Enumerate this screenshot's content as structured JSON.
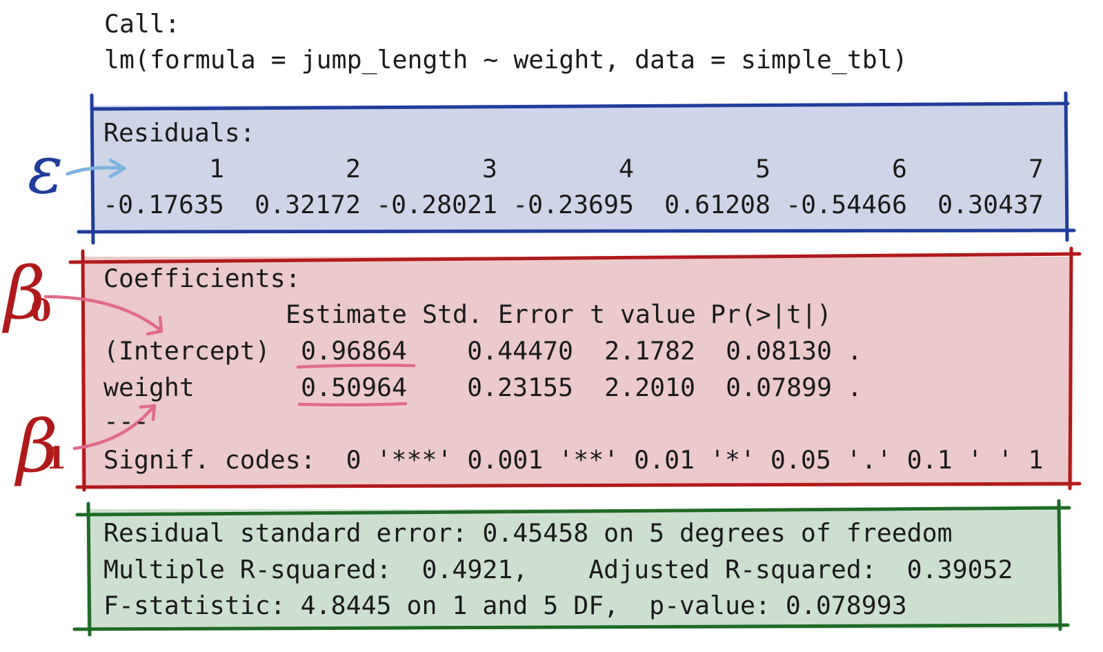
{
  "call": {
    "heading": "Call:",
    "formula": "lm(formula = jump_length ~ weight, data = simple_tbl)"
  },
  "residuals": {
    "heading": "Residuals:",
    "index": [
      "1",
      "2",
      "3",
      "4",
      "5",
      "6",
      "7"
    ],
    "values": [
      "-0.17635",
      "0.32172",
      "-0.28021",
      "-0.23695",
      "0.61208",
      "-0.54466",
      "0.30437"
    ]
  },
  "coefficients": {
    "heading": "Coefficients:",
    "columns": [
      "Estimate",
      "Std. Error",
      "t value",
      "Pr(>|t|)"
    ],
    "rows": [
      {
        "term": "(Intercept)",
        "estimate": "0.96864",
        "std_error": "0.44470",
        "t_value": "2.1782",
        "p_value": "0.08130",
        "signif": "."
      },
      {
        "term": "weight",
        "estimate": "0.50964",
        "std_error": "0.23155",
        "t_value": "2.2010",
        "p_value": "0.07899",
        "signif": "."
      }
    ],
    "separator": "---",
    "signif_codes": "Signif. codes:  0 '***' 0.001 '**' 0.01 '*' 0.05 '.' 0.1 ' ' 1"
  },
  "fit": {
    "line1": "Residual standard error: 0.45458 on 5 degrees of freedom",
    "line2": "Multiple R-squared:  0.4921,\tAdjusted R-squared:  0.39052",
    "line3": "F-statistic: 4.8445 on 1 and 5 DF,  p-value: 0.078993"
  },
  "annotations": {
    "epsilon": "ε",
    "beta0": "β",
    "beta0_sub": "0",
    "beta1": "β",
    "beta1_sub": "1"
  },
  "colors": {
    "residual_box_fill": "#cfd5e8",
    "residual_box_stroke": "#1f3d9c",
    "coef_box_fill": "#ecc9ca",
    "coef_box_stroke": "#b01a1a",
    "fit_box_fill": "#cde0d0",
    "fit_box_stroke": "#1e6b24",
    "epsilon_arrow": "#7db4e0",
    "beta_arrow": "#e06a8a",
    "underline": "#e06a8a"
  }
}
